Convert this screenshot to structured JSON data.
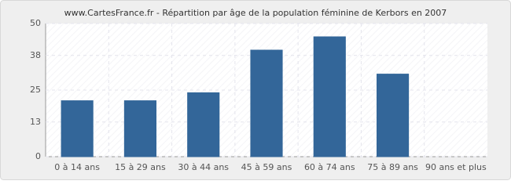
{
  "chart_data": {
    "type": "bar",
    "title": "www.CartesFrance.fr - Répartition par âge de la population féminine de Kerbors en 2007",
    "categories": [
      "0 à 14 ans",
      "15 à 29 ans",
      "30 à 44 ans",
      "45 à 59 ans",
      "60 à 74 ans",
      "75 à 89 ans",
      "90 ans et plus"
    ],
    "values": [
      21,
      21,
      24,
      40,
      45,
      31,
      0
    ],
    "color": "#336699",
    "ylim": [
      0,
      50
    ],
    "yticks": [
      0,
      13,
      25,
      38,
      50
    ],
    "grid": true
  }
}
